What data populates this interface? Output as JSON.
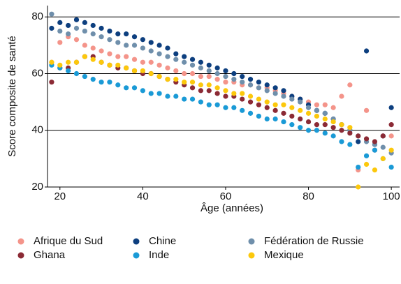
{
  "chart_data": {
    "type": "scatter",
    "xlabel": "Âge (années)",
    "ylabel": "Score composite de santé",
    "x": [
      18,
      20,
      22,
      24,
      26,
      28,
      30,
      32,
      34,
      36,
      38,
      40,
      42,
      44,
      46,
      48,
      50,
      52,
      54,
      56,
      58,
      60,
      62,
      64,
      66,
      68,
      70,
      72,
      74,
      76,
      78,
      80,
      82,
      84,
      86,
      88,
      90,
      92,
      94,
      96,
      98,
      100
    ],
    "series": [
      {
        "name": "Afrique du Sud",
        "color": "#f4948a",
        "values": [
          64,
          71,
          73,
          72,
          70,
          69,
          68,
          67,
          66,
          66,
          65,
          64,
          64,
          63,
          62,
          61,
          60,
          60,
          59,
          59,
          58,
          57,
          57,
          56,
          56,
          55,
          55,
          54,
          53,
          52,
          51,
          50,
          49,
          49,
          48,
          52,
          56,
          26,
          47,
          33,
          38,
          38
        ]
      },
      {
        "name": "Chine",
        "color": "#0d3f7f",
        "values": [
          76,
          78,
          77,
          79,
          78,
          77,
          76,
          75,
          74,
          74,
          73,
          72,
          71,
          70,
          69,
          67,
          66,
          65,
          64,
          63,
          62,
          61,
          60,
          59,
          58,
          57,
          56,
          55,
          54,
          52,
          51,
          49,
          47,
          46,
          44,
          42,
          40,
          36,
          68,
          35,
          38,
          48
        ]
      },
      {
        "name": "Fédération de Russie",
        "color": "#6f8fab",
        "values": [
          81,
          75,
          74,
          76,
          75,
          74,
          73,
          72,
          71,
          70,
          70,
          69,
          68,
          67,
          66,
          65,
          64,
          63,
          62,
          61,
          60,
          59,
          58,
          57,
          56,
          55,
          54,
          53,
          52,
          51,
          50,
          48,
          47,
          46,
          44,
          42,
          40,
          38,
          36,
          35,
          34,
          32
        ]
      },
      {
        "name": "Ghana",
        "color": "#8b2a35",
        "values": [
          57,
          62,
          62,
          64,
          66,
          66,
          64,
          63,
          62,
          62,
          61,
          60,
          60,
          59,
          58,
          57,
          56,
          55,
          54,
          54,
          53,
          52,
          52,
          51,
          50,
          49,
          48,
          47,
          46,
          45,
          44,
          43,
          42,
          42,
          41,
          40,
          39,
          38,
          37,
          36,
          38,
          42
        ]
      },
      {
        "name": "Inde",
        "color": "#1a9ad6",
        "values": [
          63,
          62,
          61,
          60,
          59,
          58,
          57,
          57,
          56,
          55,
          55,
          54,
          53,
          53,
          52,
          52,
          51,
          51,
          50,
          49,
          49,
          48,
          48,
          47,
          46,
          45,
          44,
          44,
          43,
          42,
          41,
          40,
          40,
          39,
          38,
          36,
          35,
          27,
          31,
          33,
          30,
          27
        ]
      },
      {
        "name": "Mexique",
        "color": "#fcc80c",
        "values": [
          64,
          63,
          64,
          64,
          66,
          65,
          64,
          63,
          63,
          62,
          61,
          61,
          60,
          59,
          58,
          58,
          57,
          57,
          56,
          56,
          55,
          54,
          53,
          53,
          52,
          51,
          50,
          49,
          49,
          48,
          47,
          46,
          45,
          44,
          43,
          42,
          41,
          20,
          28,
          26,
          30,
          33
        ]
      }
    ],
    "xlim": [
      17,
      102
    ],
    "ylim": [
      20,
      84
    ],
    "xticks": [
      20,
      40,
      60,
      80,
      100
    ],
    "yticks": [
      20,
      40,
      60,
      80
    ],
    "grid": true
  }
}
